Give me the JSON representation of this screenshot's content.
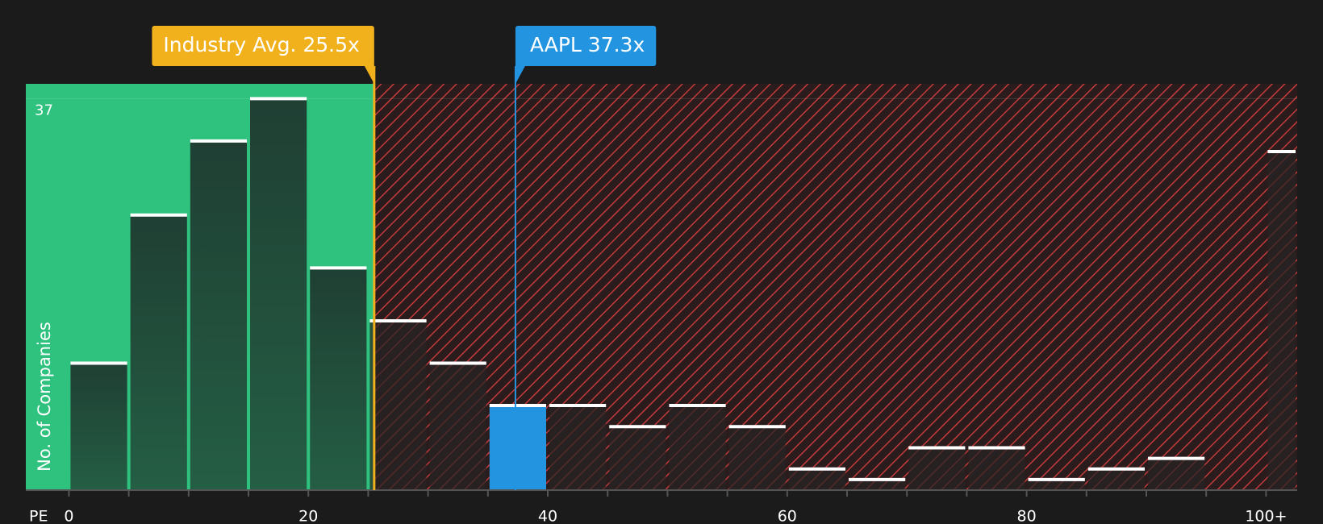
{
  "chart_data": {
    "type": "histogram",
    "bins": [
      0,
      5,
      10,
      15,
      20,
      25,
      30,
      35,
      40,
      45,
      50,
      55,
      60,
      65,
      70,
      75,
      80,
      85,
      90,
      95,
      100,
      105
    ],
    "values": [
      12,
      26,
      33,
      37,
      21,
      16,
      12,
      8,
      8,
      6,
      8,
      6,
      2,
      1,
      4,
      4,
      1,
      2,
      3,
      0,
      32
    ],
    "xlim": [
      -3.6,
      102.6
    ],
    "ylim": [
      0,
      38.4
    ],
    "xticks": [
      0,
      20,
      40,
      60,
      80,
      {
        "value": 100,
        "label": "100+"
      }
    ],
    "yticks": [
      37
    ],
    "xlabel": "PE",
    "ylabel": "No. of Companies",
    "annotations": [
      {
        "text": "Industry Avg. 25.5x",
        "x": 25.5,
        "color": "#f0b11d"
      },
      {
        "text": "AAPL 37.3x",
        "x": 37.3,
        "color": "#2394e0"
      }
    ],
    "colors": {
      "undervalued": "#2ec27e",
      "overvalued": "#c23b3b",
      "background": "#1b1b1b"
    }
  }
}
